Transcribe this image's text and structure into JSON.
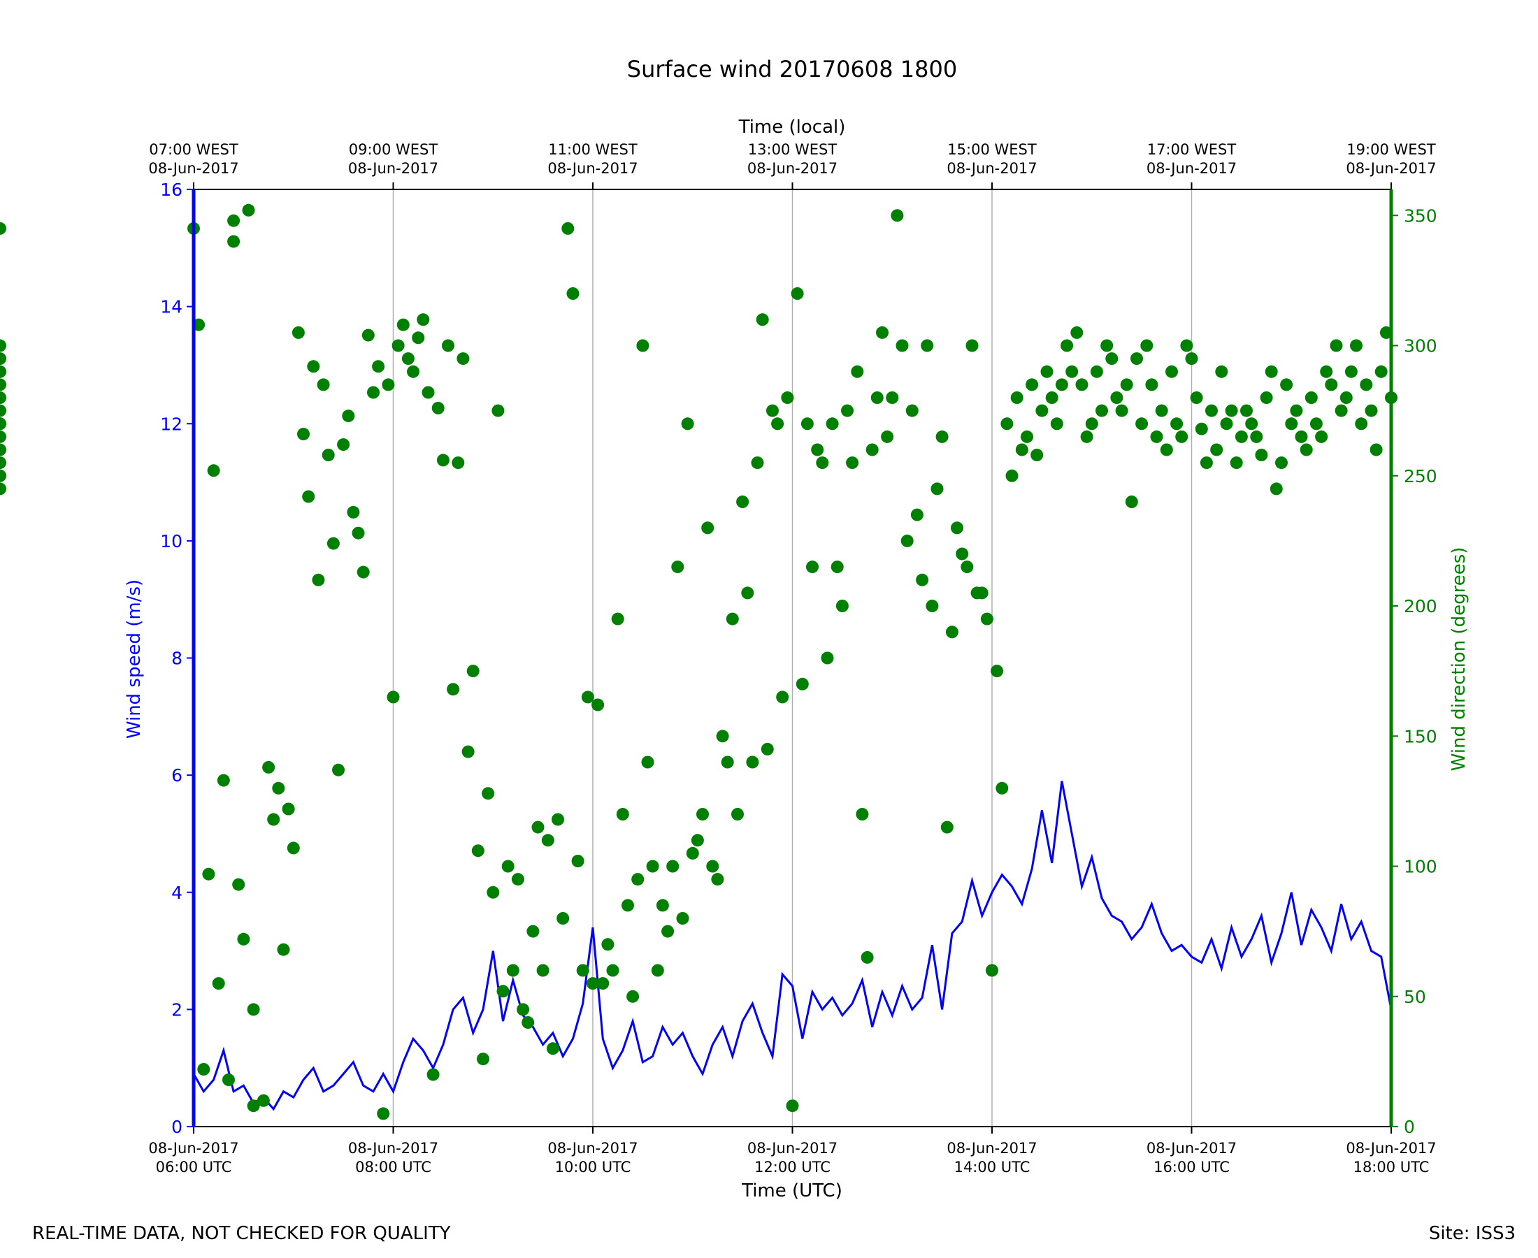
{
  "footer": {
    "quality_note": "REAL-TIME DATA, NOT CHECKED FOR QUALITY",
    "site": "Site: ISS3"
  },
  "chart_data": {
    "type": "line",
    "title": "Surface wind 20170608 1800",
    "top_axis_label": "Time (local)",
    "xlabel": "Time (UTC)",
    "ylabel_left": "Wind speed (m/s)",
    "ylabel_right": "Wind direction (degrees)",
    "grid": "vertical at major ticks",
    "xlim_utc_hours": [
      6,
      18
    ],
    "ylim_left": [
      0,
      16
    ],
    "ylim_right": [
      0,
      360
    ],
    "x_ticks_bottom": [
      {
        "h": 6,
        "line1": "08-Jun-2017",
        "line2": "06:00 UTC"
      },
      {
        "h": 8,
        "line1": "08-Jun-2017",
        "line2": "08:00 UTC"
      },
      {
        "h": 10,
        "line1": "08-Jun-2017",
        "line2": "10:00 UTC"
      },
      {
        "h": 12,
        "line1": "08-Jun-2017",
        "line2": "12:00 UTC"
      },
      {
        "h": 14,
        "line1": "08-Jun-2017",
        "line2": "14:00 UTC"
      },
      {
        "h": 16,
        "line1": "08-Jun-2017",
        "line2": "16:00 UTC"
      },
      {
        "h": 18,
        "line1": "08-Jun-2017",
        "line2": "18:00 UTC"
      }
    ],
    "x_ticks_top": [
      {
        "h": 6,
        "line1": "07:00 WEST",
        "line2": "08-Jun-2017"
      },
      {
        "h": 8,
        "line1": "09:00 WEST",
        "line2": "08-Jun-2017"
      },
      {
        "h": 10,
        "line1": "11:00 WEST",
        "line2": "08-Jun-2017"
      },
      {
        "h": 12,
        "line1": "13:00 WEST",
        "line2": "08-Jun-2017"
      },
      {
        "h": 14,
        "line1": "15:00 WEST",
        "line2": "08-Jun-2017"
      },
      {
        "h": 16,
        "line1": "17:00 WEST",
        "line2": "08-Jun-2017"
      },
      {
        "h": 18,
        "line1": "19:00 WEST",
        "line2": "08-Jun-2017"
      }
    ],
    "y_ticks_left": [
      0,
      2,
      4,
      6,
      8,
      10,
      12,
      14,
      16
    ],
    "y_ticks_right": [
      0,
      50,
      100,
      150,
      200,
      250,
      300,
      350
    ],
    "colors": {
      "speed": "#0000ff",
      "direction": "#008000",
      "grid": "#b0b0b0",
      "axes": "#000000"
    },
    "series": [
      {
        "name": "Wind speed (m/s)",
        "axis": "left",
        "style": "line",
        "x_utc_hours": [
          6.0,
          6.1,
          6.2,
          6.3,
          6.4,
          6.5,
          6.6,
          6.7,
          6.8,
          6.9,
          7.0,
          7.1,
          7.2,
          7.3,
          7.4,
          7.5,
          7.6,
          7.7,
          7.8,
          7.9,
          8.0,
          8.1,
          8.2,
          8.3,
          8.4,
          8.5,
          8.6,
          8.7,
          8.8,
          8.9,
          9.0,
          9.1,
          9.2,
          9.3,
          9.4,
          9.5,
          9.6,
          9.7,
          9.8,
          9.9,
          10.0,
          10.1,
          10.2,
          10.3,
          10.4,
          10.5,
          10.6,
          10.7,
          10.8,
          10.9,
          11.0,
          11.1,
          11.2,
          11.3,
          11.4,
          11.5,
          11.6,
          11.7,
          11.8,
          11.9,
          12.0,
          12.1,
          12.2,
          12.3,
          12.4,
          12.5,
          12.6,
          12.7,
          12.8,
          12.9,
          13.0,
          13.1,
          13.2,
          13.3,
          13.4,
          13.5,
          13.6,
          13.7,
          13.8,
          13.9,
          14.0,
          14.1,
          14.2,
          14.3,
          14.4,
          14.5,
          14.6,
          14.7,
          14.8,
          14.9,
          15.0,
          15.1,
          15.2,
          15.3,
          15.4,
          15.5,
          15.6,
          15.7,
          15.8,
          15.9,
          16.0,
          16.1,
          16.2,
          16.3,
          16.4,
          16.5,
          16.6,
          16.7,
          16.8,
          16.9,
          17.0,
          17.1,
          17.2,
          17.3,
          17.4,
          17.5,
          17.6,
          17.7,
          17.8,
          17.9,
          18.0
        ],
        "values": [
          0.9,
          0.6,
          0.8,
          1.3,
          0.6,
          0.7,
          0.4,
          0.5,
          0.3,
          0.6,
          0.5,
          0.8,
          1.0,
          0.6,
          0.7,
          0.9,
          1.1,
          0.7,
          0.6,
          0.9,
          0.6,
          1.1,
          1.5,
          1.3,
          1.0,
          1.4,
          2.0,
          2.2,
          1.6,
          2.0,
          3.0,
          1.8,
          2.5,
          1.9,
          1.7,
          1.4,
          1.6,
          1.2,
          1.5,
          2.1,
          3.4,
          1.5,
          1.0,
          1.3,
          1.8,
          1.1,
          1.2,
          1.7,
          1.4,
          1.6,
          1.2,
          0.9,
          1.4,
          1.7,
          1.2,
          1.8,
          2.1,
          1.6,
          1.2,
          2.6,
          2.4,
          1.5,
          2.3,
          2.0,
          2.2,
          1.9,
          2.1,
          2.5,
          1.7,
          2.3,
          1.9,
          2.4,
          2.0,
          2.2,
          3.1,
          2.0,
          3.3,
          3.5,
          4.2,
          3.6,
          4.0,
          4.3,
          4.1,
          3.8,
          4.4,
          5.4,
          4.5,
          5.9,
          5.0,
          4.1,
          4.6,
          3.9,
          3.6,
          3.5,
          3.2,
          3.4,
          3.8,
          3.3,
          3.0,
          3.1,
          2.9,
          2.8,
          3.2,
          2.7,
          3.4,
          2.9,
          3.2,
          3.6,
          2.8,
          3.3,
          4.0,
          3.1,
          3.7,
          3.4,
          3.0,
          3.8,
          3.2,
          3.5,
          3.0,
          2.9,
          2.0
        ]
      },
      {
        "name": "Wind direction (degrees)",
        "axis": "right",
        "style": "markers",
        "x_utc_hours": [
          6.0,
          6.05,
          6.1,
          6.15,
          6.2,
          6.25,
          6.3,
          6.35,
          6.4,
          6.4,
          6.45,
          6.5,
          6.55,
          6.6,
          6.6,
          6.7,
          6.75,
          6.8,
          6.85,
          6.9,
          6.95,
          7.0,
          7.05,
          7.1,
          7.15,
          7.2,
          7.25,
          7.3,
          7.35,
          7.4,
          7.45,
          7.5,
          7.55,
          7.6,
          7.65,
          7.7,
          7.75,
          7.8,
          7.85,
          7.9,
          7.95,
          8.0,
          8.05,
          8.1,
          8.15,
          8.2,
          8.25,
          8.3,
          8.35,
          8.4,
          8.45,
          8.5,
          8.55,
          8.6,
          8.65,
          8.7,
          8.75,
          8.8,
          8.85,
          8.9,
          8.95,
          9.0,
          9.05,
          9.1,
          9.15,
          9.2,
          9.25,
          9.3,
          9.35,
          9.4,
          9.45,
          9.5,
          9.55,
          9.6,
          9.65,
          9.7,
          9.75,
          9.8,
          9.85,
          9.9,
          9.95,
          10.0,
          10.05,
          10.1,
          10.15,
          10.2,
          10.25,
          10.3,
          10.35,
          10.4,
          10.45,
          10.5,
          10.55,
          10.6,
          10.65,
          10.7,
          10.75,
          10.8,
          10.85,
          10.9,
          10.95,
          11.0,
          11.05,
          11.1,
          11.15,
          11.2,
          11.25,
          11.3,
          11.35,
          11.4,
          11.45,
          11.5,
          11.55,
          11.6,
          11.65,
          11.7,
          11.75,
          11.8,
          11.85,
          11.9,
          11.95,
          12.0,
          12.05,
          12.1,
          12.15,
          12.2,
          12.25,
          12.3,
          12.35,
          12.4,
          12.45,
          12.5,
          12.55,
          12.6,
          12.65,
          12.7,
          12.75,
          12.8,
          12.85,
          12.9,
          12.95,
          13.0,
          13.05,
          13.1,
          13.15,
          13.2,
          13.25,
          13.3,
          13.35,
          13.4,
          13.45,
          13.5,
          13.55,
          13.6,
          13.65,
          13.7,
          13.75,
          13.8,
          13.85,
          13.9,
          13.95,
          14.0,
          14.05,
          14.1,
          14.15,
          14.2,
          14.25,
          14.3,
          14.35,
          14.4,
          14.45,
          14.5,
          14.55,
          14.6,
          14.65,
          14.7,
          14.75,
          14.8,
          14.85,
          14.9,
          14.95,
          15.0,
          15.05,
          15.1,
          15.15,
          15.2,
          15.25,
          15.3,
          15.35,
          15.4,
          15.45,
          15.5,
          15.55,
          15.6,
          15.65,
          15.7,
          15.75,
          15.8,
          15.85,
          15.9,
          15.95,
          16.0,
          16.05,
          16.1,
          16.15,
          16.2,
          16.25,
          16.3,
          16.35,
          16.4,
          16.45,
          16.5,
          16.55,
          16.6,
          16.65,
          16.7,
          16.75,
          16.8,
          16.85,
          16.9,
          16.95,
          17.0,
          17.05,
          17.1,
          17.15,
          17.2,
          17.25,
          17.3,
          17.35,
          17.4,
          17.45,
          17.5,
          17.55,
          17.6,
          17.65,
          17.7,
          17.75,
          17.8,
          17.85,
          17.9,
          17.95,
          18.0
        ],
        "values": [
          345,
          308,
          22,
          97,
          252,
          55,
          133,
          18,
          340,
          348,
          93,
          72,
          352,
          8,
          45,
          10,
          138,
          118,
          130,
          68,
          122,
          107,
          305,
          266,
          242,
          292,
          210,
          285,
          258,
          224,
          137,
          262,
          273,
          236,
          228,
          213,
          304,
          282,
          292,
          5,
          285,
          165,
          300,
          308,
          295,
          290,
          303,
          310,
          282,
          20,
          276,
          256,
          300,
          168,
          255,
          295,
          144,
          175,
          106,
          26,
          128,
          90,
          275,
          52,
          100,
          60,
          95,
          45,
          40,
          75,
          115,
          60,
          110,
          30,
          118,
          80,
          345,
          320,
          102,
          60,
          165,
          55,
          162,
          55,
          70,
          60,
          195,
          120,
          85,
          50,
          95,
          300,
          140,
          100,
          60,
          85,
          75,
          100,
          215,
          80,
          270,
          105,
          110,
          120,
          230,
          100,
          95,
          150,
          140,
          195,
          120,
          240,
          205,
          140,
          255,
          310,
          145,
          275,
          270,
          165,
          280,
          8,
          320,
          170,
          270,
          215,
          260,
          255,
          180,
          270,
          215,
          200,
          275,
          255,
          290,
          120,
          65,
          260,
          280,
          305,
          265,
          280,
          350,
          300,
          225,
          275,
          235,
          210,
          300,
          200,
          245,
          265,
          115,
          190,
          230,
          220,
          215,
          300,
          205,
          205,
          195,
          60,
          175,
          130,
          270,
          250,
          280,
          260,
          265,
          285,
          258,
          275,
          290,
          280,
          270,
          285,
          300,
          290,
          305,
          285,
          265,
          270,
          290,
          275,
          300,
          295,
          280,
          275,
          285,
          240,
          295,
          270,
          300,
          285,
          265,
          275,
          260,
          290,
          270,
          265,
          300,
          295,
          280,
          268,
          255,
          275,
          260,
          290,
          270,
          275,
          255,
          265,
          275,
          270,
          265,
          258,
          280,
          290,
          245,
          255,
          285,
          270,
          275,
          265,
          260,
          280,
          270,
          265,
          290,
          285,
          300,
          275,
          280,
          290,
          300,
          270,
          285,
          275,
          260,
          290,
          305,
          280,
          270,
          265,
          260,
          250,
          290,
          300,
          270,
          280,
          245,
          255,
          295,
          345,
          290,
          270,
          285,
          275,
          250
        ]
      }
    ]
  }
}
